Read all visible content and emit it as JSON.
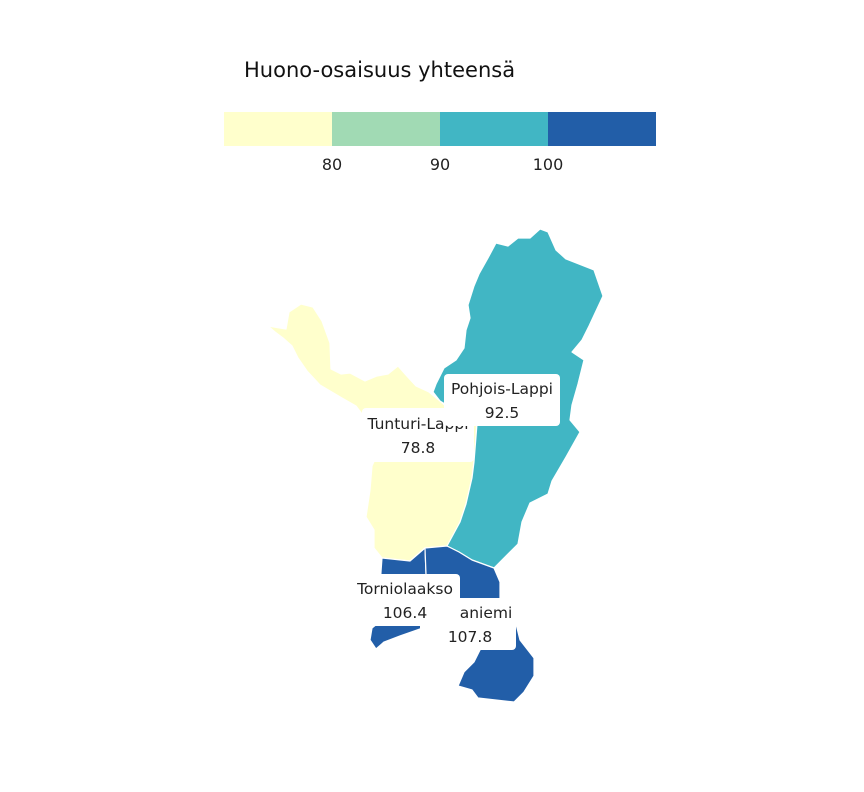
{
  "chart_data": {
    "type": "choropleth",
    "title": "Huono-osaisuus yhteensä",
    "legend": {
      "placement": "top",
      "breaks": [
        80,
        90,
        100
      ],
      "colors": [
        "#ffffcc",
        "#a1dab4",
        "#41b6c4",
        "#225ea8"
      ]
    },
    "regions": [
      {
        "name": "Tunturi-Lappi",
        "value": "78.8",
        "color": "#ffffcc"
      },
      {
        "name": "Pohjois-Lappi",
        "value": "92.5",
        "color": "#41b6c4"
      },
      {
        "name": "Torniolaakso",
        "value": "106.4",
        "color": "#225ea8"
      },
      {
        "name": "aniemi",
        "value": "107.8",
        "color": "#225ea8"
      }
    ]
  }
}
